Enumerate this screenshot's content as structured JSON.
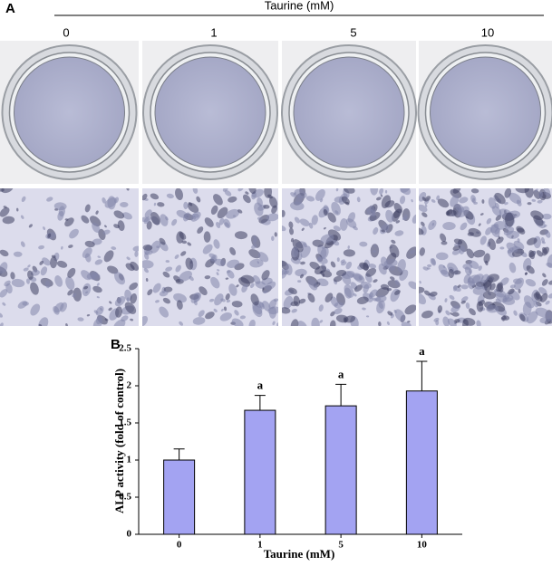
{
  "panel_a": {
    "label": "A",
    "header": "Taurine (mM)",
    "columns": [
      "0",
      "1",
      "5",
      "10"
    ]
  },
  "chart_data": {
    "type": "bar",
    "panel_label": "B",
    "y_label": "ALP activity (fold of control)",
    "x_label": "Taurine (mM)",
    "categories": [
      "0",
      "1",
      "5",
      "10"
    ],
    "values": [
      1.0,
      1.67,
      1.73,
      1.93
    ],
    "errors": [
      0.15,
      0.2,
      0.29,
      0.4
    ],
    "annotations": [
      null,
      "a",
      "a",
      "a"
    ],
    "color": "#a3a3f2",
    "ylim": [
      0,
      2.5
    ],
    "yticks": [
      0,
      0.5,
      1,
      1.5,
      2,
      2.5
    ]
  }
}
